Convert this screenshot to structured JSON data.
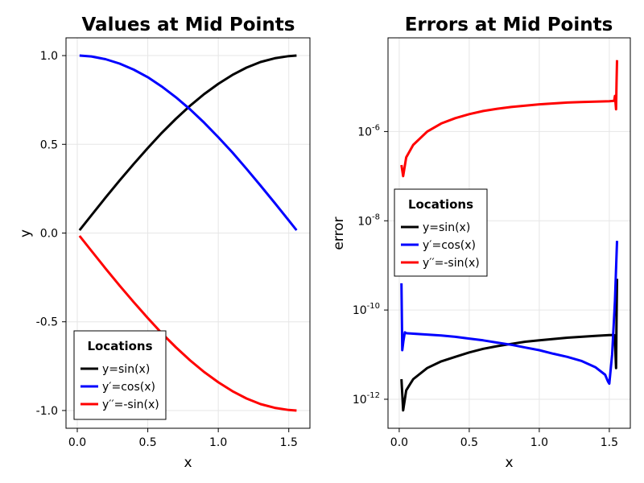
{
  "chart_data": [
    {
      "type": "line",
      "title": "Values at Mid Points",
      "xlabel": "x",
      "ylabel": "y",
      "xlim": [
        -0.08,
        1.65
      ],
      "ylim": [
        -1.1,
        1.1
      ],
      "xticks": [
        0.0,
        0.5,
        1.0,
        1.5
      ],
      "xtick_labels": [
        "0.0",
        "0.5",
        "1.0",
        "1.5"
      ],
      "yticks": [
        -1.0,
        -0.5,
        0.0,
        0.5,
        1.0
      ],
      "ytick_labels": [
        "-1.0",
        "-0.5",
        "0.0",
        "0.5",
        "1.0"
      ],
      "grid": true,
      "legend": {
        "title": "Locations",
        "placement": "bottom-left",
        "entries": [
          "y=sin(x)",
          "y′=cos(x)",
          "y′′=-sin(x)"
        ]
      },
      "series": [
        {
          "name": "y=sin(x)",
          "color": "#000000",
          "x": [
            0.0157,
            0.1,
            0.2,
            0.3,
            0.4,
            0.5,
            0.6,
            0.7,
            0.8,
            0.9,
            1.0,
            1.1,
            1.2,
            1.3,
            1.4,
            1.5,
            1.555
          ],
          "y": [
            0.016,
            0.1,
            0.199,
            0.296,
            0.389,
            0.479,
            0.565,
            0.644,
            0.717,
            0.783,
            0.841,
            0.891,
            0.932,
            0.964,
            0.985,
            0.997,
            1.0
          ]
        },
        {
          "name": "y′=cos(x)",
          "color": "#0000ff",
          "x": [
            0.0157,
            0.1,
            0.2,
            0.3,
            0.4,
            0.5,
            0.6,
            0.7,
            0.8,
            0.9,
            1.0,
            1.1,
            1.2,
            1.3,
            1.4,
            1.5,
            1.555
          ],
          "y": [
            1.0,
            0.995,
            0.98,
            0.955,
            0.921,
            0.878,
            0.825,
            0.765,
            0.697,
            0.622,
            0.54,
            0.454,
            0.362,
            0.267,
            0.17,
            0.071,
            0.016
          ]
        },
        {
          "name": "y′′=-sin(x)",
          "color": "#ff0000",
          "x": [
            0.0157,
            0.1,
            0.2,
            0.3,
            0.4,
            0.5,
            0.6,
            0.7,
            0.8,
            0.9,
            1.0,
            1.1,
            1.2,
            1.3,
            1.4,
            1.5,
            1.555
          ],
          "y": [
            -0.016,
            -0.1,
            -0.199,
            -0.296,
            -0.389,
            -0.479,
            -0.565,
            -0.644,
            -0.717,
            -0.783,
            -0.841,
            -0.891,
            -0.932,
            -0.964,
            -0.985,
            -0.997,
            -1.0
          ]
        }
      ]
    },
    {
      "type": "line",
      "title": "Errors at Mid Points",
      "xlabel": "x",
      "ylabel": "error",
      "yscale": "log",
      "xlim": [
        -0.08,
        1.65
      ],
      "ylim_log10": [
        -12.65,
        -3.9
      ],
      "xticks": [
        0.0,
        0.5,
        1.0,
        1.5
      ],
      "xtick_labels": [
        "0.0",
        "0.5",
        "1.0",
        "1.5"
      ],
      "yticks_log10": [
        -12,
        -10,
        -8,
        -6
      ],
      "ytick_labels": [
        "10-12",
        "10-10",
        "10-8",
        "10-6"
      ],
      "grid": true,
      "legend": {
        "title": "Locations",
        "placement": "center-left",
        "entries": [
          "y=sin(x)",
          "y′=cos(x)",
          "y′′=-sin(x)"
        ]
      },
      "series": [
        {
          "name": "y=sin(x)",
          "color": "#000000",
          "x": [
            0.0157,
            0.028,
            0.05,
            0.1,
            0.2,
            0.3,
            0.4,
            0.5,
            0.6,
            0.7,
            0.8,
            0.9,
            1.0,
            1.1,
            1.2,
            1.3,
            1.4,
            1.5,
            1.535,
            1.54,
            1.548,
            1.552,
            1.555
          ],
          "y_log10": [
            -11.55,
            -12.25,
            -11.8,
            -11.55,
            -11.3,
            -11.15,
            -11.05,
            -10.95,
            -10.87,
            -10.81,
            -10.76,
            -10.71,
            -10.68,
            -10.65,
            -10.62,
            -10.6,
            -10.58,
            -10.56,
            -10.56,
            -10.7,
            -11.3,
            -10.2,
            -9.3
          ]
        },
        {
          "name": "y′=cos(x)",
          "color": "#0000ff",
          "x": [
            0.0157,
            0.022,
            0.03,
            0.04,
            0.05,
            0.1,
            0.2,
            0.3,
            0.4,
            0.5,
            0.6,
            0.7,
            0.8,
            0.9,
            1.0,
            1.1,
            1.2,
            1.3,
            1.4,
            1.47,
            1.49,
            1.5,
            1.52,
            1.54,
            1.555
          ],
          "y_log10": [
            -9.4,
            -10.9,
            -10.7,
            -10.5,
            -10.52,
            -10.53,
            -10.55,
            -10.57,
            -10.6,
            -10.64,
            -10.68,
            -10.73,
            -10.78,
            -10.84,
            -10.9,
            -10.98,
            -11.05,
            -11.14,
            -11.28,
            -11.45,
            -11.6,
            -11.65,
            -11.0,
            -9.8,
            -8.45
          ]
        },
        {
          "name": "y′′=-sin(x)",
          "color": "#ff0000",
          "x": [
            0.0157,
            0.028,
            0.05,
            0.1,
            0.2,
            0.3,
            0.4,
            0.5,
            0.6,
            0.7,
            0.8,
            0.9,
            1.0,
            1.1,
            1.2,
            1.3,
            1.4,
            1.5,
            1.535,
            1.54,
            1.548,
            1.552,
            1.555
          ],
          "y_log10": [
            -6.75,
            -7.0,
            -6.58,
            -6.3,
            -6.0,
            -5.82,
            -5.7,
            -5.61,
            -5.54,
            -5.49,
            -5.45,
            -5.42,
            -5.39,
            -5.37,
            -5.35,
            -5.34,
            -5.33,
            -5.32,
            -5.31,
            -5.2,
            -5.5,
            -4.9,
            -4.4
          ]
        }
      ]
    }
  ]
}
